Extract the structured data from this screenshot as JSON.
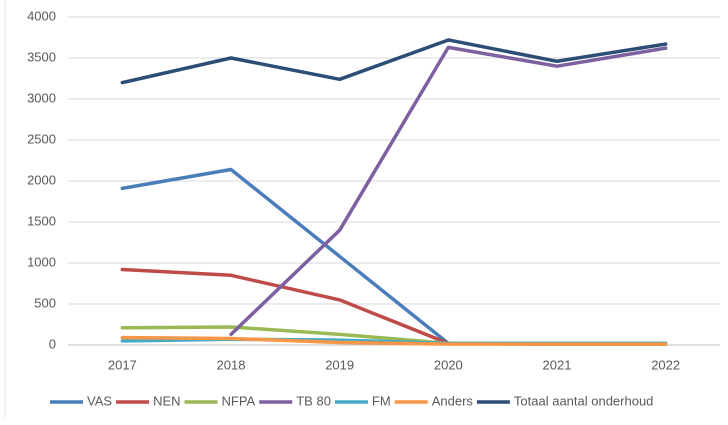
{
  "chart_data": {
    "type": "line",
    "categories": [
      "2017",
      "2018",
      "2019",
      "2020",
      "2021",
      "2022"
    ],
    "series": [
      {
        "name": "VAS",
        "color": "#4a7ebb",
        "values": [
          1910,
          2140,
          1080,
          20,
          20,
          20
        ]
      },
      {
        "name": "NEN",
        "color": "#be4b48",
        "values": [
          920,
          850,
          550,
          20,
          10,
          10
        ]
      },
      {
        "name": "NFPA",
        "color": "#98b954",
        "values": [
          210,
          220,
          130,
          20,
          10,
          10
        ]
      },
      {
        "name": "TB 80",
        "color": "#7d60a0",
        "values": [
          null,
          130,
          1400,
          3630,
          3400,
          3620
        ]
      },
      {
        "name": "FM",
        "color": "#46aac5",
        "values": [
          50,
          70,
          60,
          20,
          20,
          20
        ]
      },
      {
        "name": "Anders",
        "color": "#f79646",
        "values": [
          90,
          80,
          30,
          10,
          10,
          10
        ]
      },
      {
        "name": "Totaal aantal onderhoud",
        "color": "#2c4d75",
        "values": [
          3200,
          3500,
          3240,
          3720,
          3460,
          3670
        ]
      }
    ],
    "ylim": [
      0,
      4000
    ],
    "yticks": [
      0,
      500,
      1000,
      1500,
      2000,
      2500,
      3000,
      3500,
      4000
    ],
    "grid": true,
    "legend": "bottom"
  }
}
